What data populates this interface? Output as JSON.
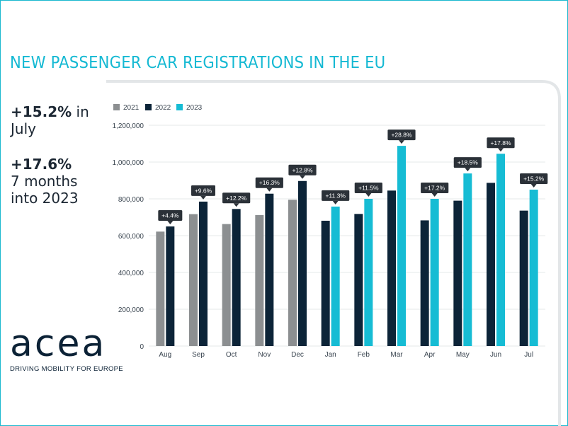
{
  "header": {
    "title": "NEW PASSENGER CAR REGISTRATIONS IN THE EU"
  },
  "highlights": [
    {
      "value": "+15.2%",
      "suffix": " in",
      "line2": "July"
    },
    {
      "value": "+17.6%",
      "line2": "7 months",
      "line3": "into 2023"
    }
  ],
  "logo": {
    "word": "acea",
    "tagline": "DRIVING MOBILITY FOR EUROPE"
  },
  "colors": {
    "2021": "#8c8f91",
    "2022": "#0c2438",
    "2023": "#16bcd4",
    "accent": "#15b9d3",
    "badge": "#2b3138"
  },
  "chart_data": {
    "type": "bar",
    "legend": [
      "2021",
      "2022",
      "2023"
    ],
    "legend_position": "top-left",
    "ylim": [
      0,
      1200000
    ],
    "yticks": [
      0,
      200000,
      400000,
      600000,
      800000,
      1000000,
      1200000
    ],
    "ytick_labels": [
      "0",
      "200,000",
      "400,000",
      "600,000",
      "800,000",
      "1,000,000",
      "1,200,000"
    ],
    "categories": [
      "Aug",
      "Sep",
      "Oct",
      "Nov",
      "Dec",
      "Jan",
      "Feb",
      "Mar",
      "Apr",
      "May",
      "Jun",
      "Jul"
    ],
    "series": [
      {
        "name": "2021",
        "values": [
          622000,
          717000,
          663000,
          712000,
          795000,
          null,
          null,
          null,
          null,
          null,
          null,
          null
        ]
      },
      {
        "name": "2022",
        "values": [
          650000,
          785000,
          745000,
          828000,
          897000,
          681000,
          718000,
          845000,
          683000,
          790000,
          887000,
          736000
        ]
      },
      {
        "name": "2023",
        "values": [
          null,
          null,
          null,
          null,
          null,
          758000,
          800000,
          1088000,
          800000,
          938000,
          1045000,
          850000
        ]
      }
    ],
    "annotations": [
      "+4.4%",
      "+9.6%",
      "+12.2%",
      "+16.3%",
      "+12.8%",
      "+11.3%",
      "+11.5%",
      "+28.8%",
      "+17.2%",
      "+18.5%",
      "+17.8%",
      "+15.2%"
    ]
  }
}
